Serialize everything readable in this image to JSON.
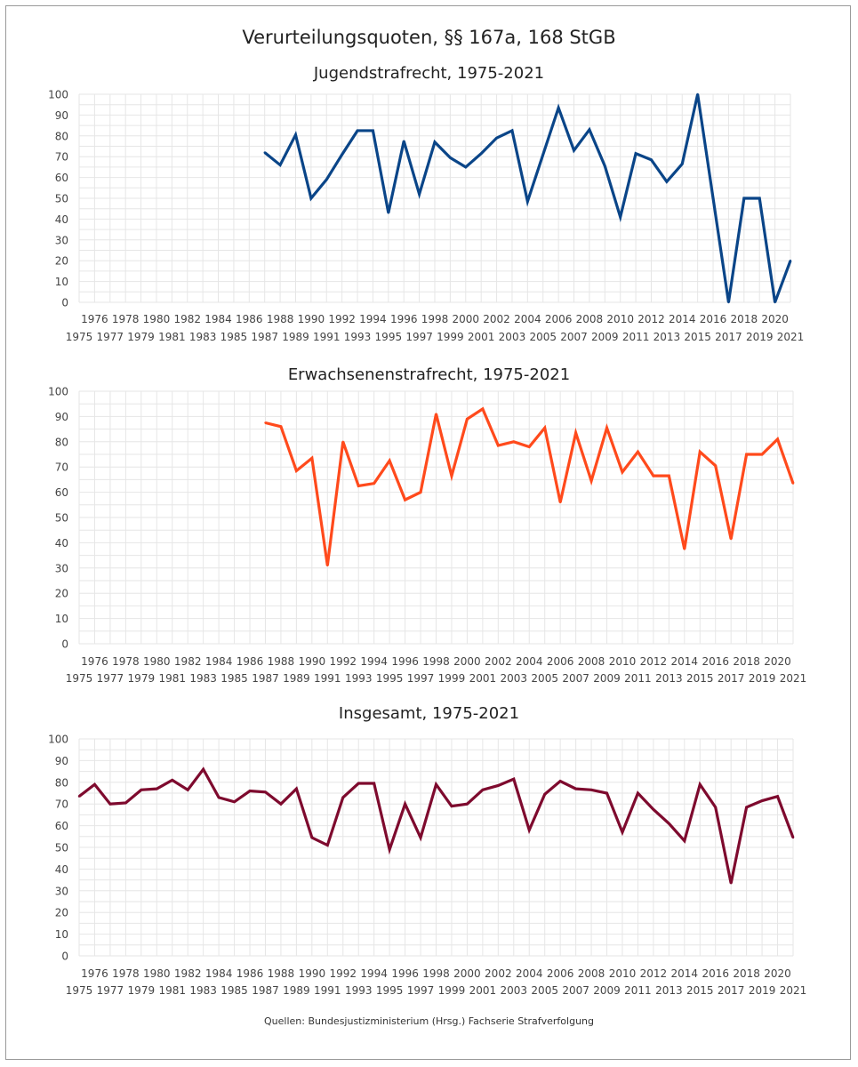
{
  "title": "Verurteilungsquoten, §§ 167a, 168 StGB",
  "source": "Quellen: Bundesjustizministerium (Hrsg.) Fachserie Strafverfolgung",
  "chart_data": [
    {
      "type": "line",
      "title": "Jugendstrafrecht, 1975-2021",
      "xlabel": "",
      "ylabel": "",
      "ylim": [
        0,
        100
      ],
      "yticks": [
        0,
        10,
        20,
        30,
        40,
        50,
        60,
        70,
        80,
        90,
        100
      ],
      "x": [
        1975,
        1976,
        1977,
        1978,
        1979,
        1980,
        1981,
        1982,
        1983,
        1984,
        1985,
        1986,
        1987,
        1988,
        1989,
        1990,
        1991,
        1992,
        1993,
        1994,
        1995,
        1996,
        1997,
        1998,
        1999,
        2000,
        2001,
        2002,
        2003,
        2004,
        2005,
        2006,
        2007,
        2008,
        2009,
        2010,
        2011,
        2012,
        2013,
        2014,
        2015,
        2016,
        2017,
        2018,
        2019,
        2020,
        2021
      ],
      "color": "#0a4588",
      "grid": true,
      "series": [
        {
          "values": [
            null,
            null,
            null,
            null,
            null,
            null,
            null,
            null,
            null,
            null,
            null,
            null,
            72,
            66,
            80.5,
            50,
            59,
            71,
            82.5,
            82.5,
            43,
            77.5,
            52,
            77,
            69.5,
            65,
            71.5,
            79,
            82.5,
            48.5,
            71,
            93.5,
            73,
            83,
            65.5,
            41,
            71.5,
            68.5,
            58,
            66.5,
            100,
            50,
            0,
            50,
            50,
            0,
            20
          ]
        }
      ]
    },
    {
      "type": "line",
      "title": "Erwachsenenstrafrecht, 1975-2021",
      "xlabel": "",
      "ylabel": "",
      "ylim": [
        0,
        100
      ],
      "yticks": [
        0,
        10,
        20,
        30,
        40,
        50,
        60,
        70,
        80,
        90,
        100
      ],
      "x": [
        1975,
        1976,
        1977,
        1978,
        1979,
        1980,
        1981,
        1982,
        1983,
        1984,
        1985,
        1986,
        1987,
        1988,
        1989,
        1990,
        1991,
        1992,
        1993,
        1994,
        1995,
        1996,
        1997,
        1998,
        1999,
        2000,
        2001,
        2002,
        2003,
        2004,
        2005,
        2006,
        2007,
        2008,
        2009,
        2010,
        2011,
        2012,
        2013,
        2014,
        2015,
        2016,
        2017,
        2018,
        2019,
        2020,
        2021
      ],
      "color": "#ff4a1c",
      "grid": true,
      "series": [
        {
          "values": [
            null,
            null,
            null,
            null,
            null,
            null,
            null,
            null,
            null,
            null,
            null,
            null,
            87.5,
            86,
            68.5,
            73.5,
            31,
            80,
            62.5,
            63.5,
            72.5,
            57,
            60,
            91,
            66.5,
            89,
            93,
            78.5,
            80,
            78,
            85.5,
            56,
            83.5,
            64.5,
            85.5,
            68,
            76,
            66.5,
            66.5,
            37.5,
            76,
            70.5,
            41.5,
            75,
            75,
            81,
            63.5
          ]
        }
      ]
    },
    {
      "type": "line",
      "title": "Insgesamt, 1975-2021",
      "xlabel": "",
      "ylabel": "",
      "ylim": [
        0,
        100
      ],
      "yticks": [
        0,
        10,
        20,
        30,
        40,
        50,
        60,
        70,
        80,
        90,
        100
      ],
      "x": [
        1975,
        1976,
        1977,
        1978,
        1979,
        1980,
        1981,
        1982,
        1983,
        1984,
        1985,
        1986,
        1987,
        1988,
        1989,
        1990,
        1991,
        1992,
        1993,
        1994,
        1995,
        1996,
        1997,
        1998,
        1999,
        2000,
        2001,
        2002,
        2003,
        2004,
        2005,
        2006,
        2007,
        2008,
        2009,
        2010,
        2011,
        2012,
        2013,
        2014,
        2015,
        2016,
        2017,
        2018,
        2019,
        2020,
        2021
      ],
      "color": "#7e0a2e",
      "grid": true,
      "series": [
        {
          "values": [
            73.5,
            79,
            70,
            70.5,
            76.5,
            77,
            81,
            76.5,
            86,
            73,
            71,
            76,
            75.5,
            70,
            77,
            54.5,
            51,
            73,
            79.5,
            79.5,
            49,
            70,
            54.5,
            79,
            69,
            70,
            76.5,
            78.5,
            81.5,
            58,
            74.5,
            80.5,
            77,
            76.5,
            75,
            57,
            75,
            67.5,
            61,
            53,
            79,
            68.5,
            33.5,
            68.5,
            71.5,
            73.5,
            54.5
          ]
        }
      ]
    }
  ]
}
